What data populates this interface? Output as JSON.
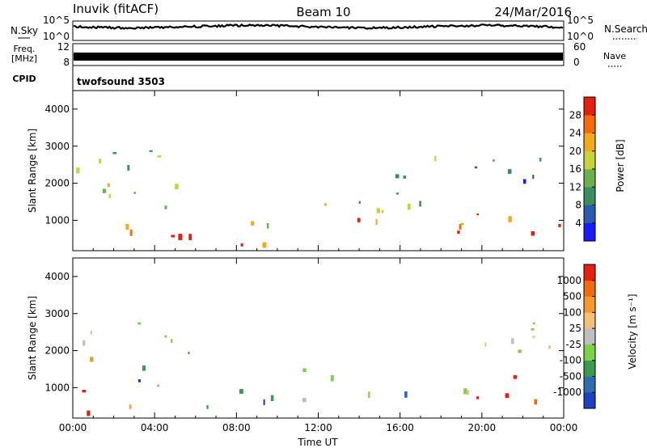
{
  "header": {
    "station": "Inuvik (fitACF)",
    "beam": "Beam 10",
    "date": "24/Mar/2016"
  },
  "top_panels": {
    "nsky_label": "N.Sky",
    "nsearch_label": "N.Search",
    "noise_ticks": [
      "10^5",
      "10^0"
    ],
    "freq_label_1": "Freq.",
    "freq_label_2": "[MHz]",
    "freq_ticks": [
      "12",
      "8"
    ],
    "nave_label": "Nave",
    "nave_ticks": [
      "60",
      "0"
    ],
    "cpid_label": "CPID",
    "cpid_value": "twofsound 3503"
  },
  "chart_data": [
    {
      "type": "heatmap",
      "name": "power",
      "ylabel": "Slant Range [km]",
      "xlabel": "",
      "x_ticks": [
        "00:00",
        "04:00",
        "08:00",
        "12:00",
        "16:00",
        "20:00",
        "00:00"
      ],
      "y_ticks": [
        1000,
        2000,
        3000,
        4000
      ],
      "ylim": [
        180,
        4500
      ],
      "xlim_hours": [
        0,
        24
      ],
      "colorbar": {
        "label": "Power [dB]",
        "ticks": [
          4,
          8,
          12,
          16,
          20,
          24,
          28
        ],
        "range": [
          0,
          32
        ],
        "colors": [
          "#1a1aff",
          "#2a5ab0",
          "#3a8d5e",
          "#6cb04c",
          "#c8d23a",
          "#f2aa1c",
          "#f36b0a",
          "#e32010"
        ]
      },
      "regions": [
        {
          "t0": 0.0,
          "t1": 6.0,
          "r0": 300,
          "r1": 1100,
          "level": 0.85
        },
        {
          "t0": 0.0,
          "t1": 6.0,
          "r0": 1100,
          "r1": 2000,
          "level": 0.55
        },
        {
          "t0": 0.0,
          "t1": 5.0,
          "r0": 2000,
          "r1": 3000,
          "level": 0.4
        },
        {
          "t0": 6.5,
          "t1": 10.5,
          "r0": 200,
          "r1": 700,
          "level": 0.85
        },
        {
          "t0": 8.5,
          "t1": 10.0,
          "r0": 700,
          "r1": 1800,
          "level": 0.6
        },
        {
          "t0": 11.0,
          "t1": 12.5,
          "r0": 1200,
          "r1": 2000,
          "level": 0.65
        },
        {
          "t0": 12.5,
          "t1": 24.0,
          "r0": 600,
          "r1": 1200,
          "level": 0.8
        },
        {
          "t0": 13.0,
          "t1": 20.0,
          "r0": 1200,
          "r1": 2000,
          "level": 0.4
        },
        {
          "t0": 15.0,
          "t1": 23.5,
          "r0": 2000,
          "r1": 2900,
          "level": 0.3
        },
        {
          "t0": 21.0,
          "t1": 24.0,
          "r0": 700,
          "r1": 1300,
          "level": 0.95
        }
      ]
    },
    {
      "type": "heatmap",
      "name": "velocity",
      "ylabel": "Slant Range [km]",
      "xlabel": "Time UT",
      "x_ticks": [
        "00:00",
        "04:00",
        "08:00",
        "12:00",
        "16:00",
        "20:00",
        "00:00"
      ],
      "y_ticks": [
        1000,
        2000,
        3000,
        4000
      ],
      "ylim": [
        180,
        4500
      ],
      "xlim_hours": [
        0,
        24
      ],
      "colorbar": {
        "label": "Velocity [m s⁻¹]",
        "ticks": [
          "1000",
          "500",
          "100",
          "25",
          "-25",
          "-100",
          "-500",
          "-1000"
        ],
        "colors": [
          "#1e3fbf",
          "#2f6bb0",
          "#3c9a4e",
          "#7cd04a",
          "#bfbfbf",
          "#f3c07a",
          "#f59a2a",
          "#f06a0e",
          "#e82010"
        ]
      },
      "regions": [
        {
          "t0": 0.0,
          "t1": 3.5,
          "r0": 300,
          "r1": 1100,
          "level": 0.8
        },
        {
          "t0": 0.0,
          "t1": 5.0,
          "r0": 1800,
          "r1": 2800,
          "level": 0.5
        },
        {
          "t0": 2.0,
          "t1": 6.0,
          "r0": 1000,
          "r1": 2000,
          "level": 0.25
        },
        {
          "t0": 6.5,
          "t1": 10.5,
          "r0": 200,
          "r1": 1000,
          "level": 0.3
        },
        {
          "t0": 10.0,
          "t1": 12.0,
          "r0": 500,
          "r1": 900,
          "level": 0.5
        },
        {
          "t0": 11.0,
          "t1": 13.0,
          "r0": 1300,
          "r1": 2000,
          "level": 0.2
        },
        {
          "t0": 13.0,
          "t1": 20.0,
          "r0": 600,
          "r1": 1000,
          "level": 0.25
        },
        {
          "t0": 16.0,
          "t1": 24.0,
          "r0": 500,
          "r1": 1000,
          "level": 0.8
        },
        {
          "t0": 20.0,
          "t1": 22.0,
          "r0": 1200,
          "r1": 1500,
          "level": 0.9
        },
        {
          "t0": 18.0,
          "t1": 24.0,
          "r0": 1800,
          "r1": 2800,
          "level": 0.5
        }
      ]
    }
  ]
}
